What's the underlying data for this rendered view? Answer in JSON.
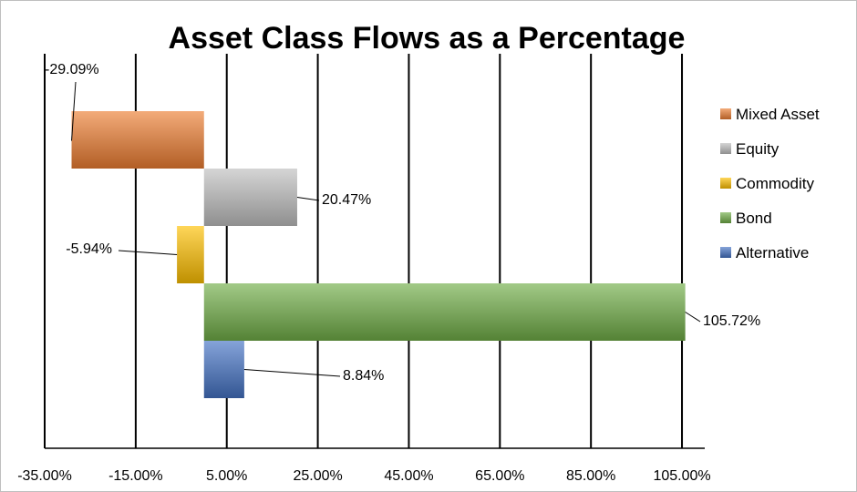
{
  "chart_data": {
    "type": "bar",
    "orientation": "horizontal",
    "title": "Asset Class Flows as a Percentage",
    "xlabel": "",
    "ylabel": "",
    "xlim": [
      -35,
      110
    ],
    "x_ticks": [
      -35,
      -15,
      5,
      25,
      45,
      65,
      85,
      105
    ],
    "x_tick_labels": [
      "-35.00%",
      "-15.00%",
      "5.00%",
      "25.00%",
      "45.00%",
      "65.00%",
      "85.00%",
      "105.00%"
    ],
    "grid": "vertical major gridlines",
    "legend_position": "right",
    "series": [
      {
        "name": "Mixed Asset",
        "value": -29.09,
        "label": "-29.09%",
        "color": "#ED7D31"
      },
      {
        "name": "Equity",
        "value": 20.47,
        "label": "20.47%",
        "color": "#BFBFBF"
      },
      {
        "name": "Commodity",
        "value": -5.94,
        "label": "-5.94%",
        "color": "#FFC000"
      },
      {
        "name": "Bond",
        "value": 105.72,
        "label": "105.72%",
        "color": "#70AD47"
      },
      {
        "name": "Alternative",
        "value": 8.84,
        "label": "8.84%",
        "color": "#4472C4"
      }
    ]
  }
}
